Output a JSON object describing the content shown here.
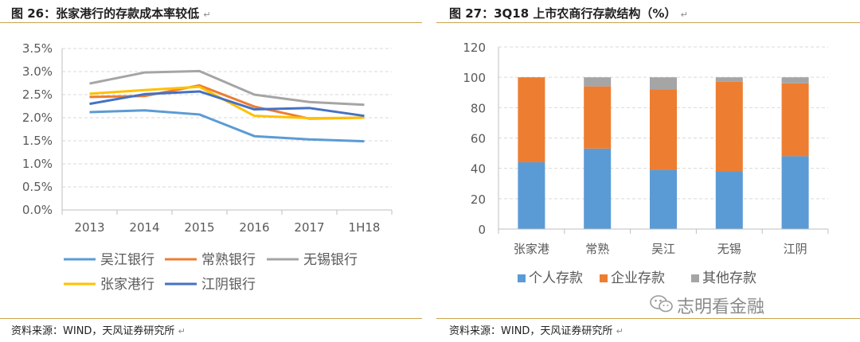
{
  "left": {
    "title": "图 26：张家港行的存款成本率较低",
    "source": "资料来源：WIND，天风证券研究所"
  },
  "right": {
    "title": "图 27：3Q18 上市农商行存款结构（%）",
    "source": "资料来源：WIND，天风证券研究所",
    "watermark": "志明看金融"
  },
  "marks": {
    "para": "↵"
  },
  "chart_data": [
    {
      "type": "line",
      "title": "张家港行的存款成本率较低",
      "x": [
        "2013",
        "2014",
        "2015",
        "2016",
        "2017",
        "1H18"
      ],
      "ylim": [
        0,
        3.5
      ],
      "yticks": [
        "0.0%",
        "0.5%",
        "1.0%",
        "1.5%",
        "2.0%",
        "2.5%",
        "3.0%",
        "3.5%"
      ],
      "series": [
        {
          "name": "吴江银行",
          "color": "#5b9bd5",
          "values": [
            2.12,
            2.16,
            2.07,
            1.6,
            1.53,
            1.49
          ]
        },
        {
          "name": "常熟银行",
          "color": "#ed7d31",
          "values": [
            2.45,
            2.47,
            2.7,
            2.24,
            1.98,
            2.0
          ]
        },
        {
          "name": "无锡银行",
          "color": "#a5a5a5",
          "values": [
            2.74,
            2.98,
            3.01,
            2.5,
            2.34,
            2.28
          ]
        },
        {
          "name": "张家港行",
          "color": "#ffc000",
          "values": [
            2.52,
            2.6,
            2.67,
            2.04,
            1.99,
            2.0
          ]
        },
        {
          "name": "江阴银行",
          "color": "#4472c4",
          "values": [
            2.3,
            2.51,
            2.57,
            2.18,
            2.21,
            2.04
          ]
        }
      ]
    },
    {
      "type": "bar",
      "stacked": true,
      "title": "3Q18 上市农商行存款结构（%）",
      "categories": [
        "张家港",
        "常熟",
        "吴江",
        "无锡",
        "江阴"
      ],
      "ylim": [
        0,
        120
      ],
      "yticks": [
        "0",
        "20",
        "40",
        "60",
        "80",
        "100",
        "120"
      ],
      "series": [
        {
          "name": "个人存款",
          "color": "#5b9bd5",
          "values": [
            44,
            53,
            39,
            38,
            48
          ]
        },
        {
          "name": "企业存款",
          "color": "#ed7d31",
          "values": [
            56,
            41,
            53,
            59,
            48
          ]
        },
        {
          "name": "其他存款",
          "color": "#a5a5a5",
          "values": [
            0,
            6,
            8,
            3,
            4
          ]
        }
      ]
    }
  ]
}
